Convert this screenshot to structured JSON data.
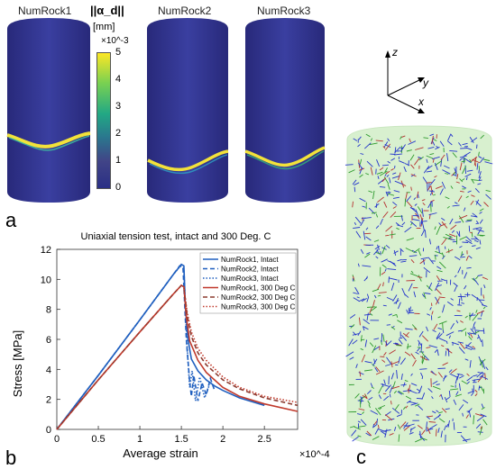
{
  "panel_a": {
    "letter": "a",
    "cylinders": [
      {
        "label": "NumRock1"
      },
      {
        "label": "NumRock2"
      },
      {
        "label": "NumRock3"
      }
    ],
    "colorbar": {
      "title": "||α_d||",
      "unit": "[mm]",
      "multiplier": "×10^-3",
      "ticks": [
        "5",
        "4",
        "3",
        "2",
        "1",
        "0"
      ],
      "colors": [
        "#fde725",
        "#35b779",
        "#21918c",
        "#3b528b",
        "#2a2f86"
      ]
    }
  },
  "panel_b": {
    "letter": "b",
    "multiplier": "×10^-4"
  },
  "panel_c": {
    "letter": "c",
    "axes": {
      "z": "z",
      "y": "y",
      "x": "x"
    },
    "colors": {
      "cylinder": "#d8f0cf",
      "blue": "#2233cc",
      "green": "#2e9a2e",
      "red": "#b53030"
    }
  },
  "chart_data": {
    "type": "line",
    "title": "Uniaxial tension test, intact and 300 Deg. C",
    "xlabel": "Average strain",
    "ylabel": "Stress [MPa]",
    "xlim": [
      0,
      2.9
    ],
    "ylim": [
      0,
      12
    ],
    "xticks": [
      0,
      0.5,
      1,
      1.5,
      2,
      2.5
    ],
    "xtick_labels": [
      "0",
      "0.5",
      "1",
      "1.5",
      "2",
      "2.5"
    ],
    "yticks": [
      0,
      2,
      4,
      6,
      8,
      10,
      12
    ],
    "ytick_labels": [
      "0",
      "2",
      "4",
      "6",
      "8",
      "10",
      "12"
    ],
    "x_multiplier": "×10^-4",
    "legend_position": "top-right",
    "series": [
      {
        "name": "NumRock1, Intact",
        "color": "#1f5fbf",
        "style": "solid",
        "x": [
          0,
          0.5,
          1.0,
          1.4,
          1.5,
          1.53,
          1.55,
          1.58,
          1.62,
          1.7,
          1.8,
          1.9,
          2.0,
          2.2,
          2.5
        ],
        "y": [
          0,
          3.6,
          7.3,
          10.3,
          11.0,
          10.9,
          8.0,
          6.0,
          4.7,
          3.9,
          3.3,
          2.9,
          2.6,
          2.1,
          1.6
        ]
      },
      {
        "name": "NumRock2, Intact",
        "color": "#1f5fbf",
        "style": "dashed",
        "x": [
          0,
          0.5,
          1.0,
          1.4,
          1.48,
          1.52,
          1.56,
          1.6,
          1.62,
          1.65,
          1.7,
          1.75,
          1.8,
          1.85,
          1.9
        ],
        "y": [
          0,
          3.6,
          7.3,
          10.3,
          10.9,
          10.8,
          6.0,
          3.2,
          2.2,
          3.6,
          1.9,
          3.1,
          2.3,
          3.4,
          2.6
        ]
      },
      {
        "name": "NumRock3, Intact",
        "color": "#1f5fbf",
        "style": "dotted",
        "x": [
          0,
          0.5,
          1.0,
          1.4,
          1.49,
          1.53,
          1.57,
          1.6,
          1.63,
          1.67,
          1.72,
          1.78,
          1.84
        ],
        "y": [
          0,
          3.6,
          7.3,
          10.3,
          10.9,
          10.7,
          5.5,
          2.8,
          3.9,
          1.9,
          3.5,
          2.1,
          3.0
        ]
      },
      {
        "name": "NumRock1, 300 Deg C",
        "color": "#c0392b",
        "style": "solid",
        "x": [
          0,
          0.5,
          1.0,
          1.4,
          1.5,
          1.53,
          1.56,
          1.6,
          1.7,
          1.8,
          2.0,
          2.2,
          2.5,
          2.9
        ],
        "y": [
          0,
          3.3,
          6.5,
          9.0,
          9.6,
          9.5,
          7.5,
          5.9,
          4.6,
          3.8,
          2.8,
          2.2,
          1.7,
          1.2
        ]
      },
      {
        "name": "NumRock2, 300 Deg C",
        "color": "#8b3a2f",
        "style": "dashed",
        "x": [
          0,
          0.5,
          1.0,
          1.4,
          1.5,
          1.53,
          1.57,
          1.62,
          1.7,
          1.8,
          2.0,
          2.2,
          2.5,
          2.9
        ],
        "y": [
          0,
          3.3,
          6.5,
          9.0,
          9.6,
          9.5,
          7.6,
          6.2,
          5.1,
          4.3,
          3.3,
          2.7,
          2.1,
          1.6
        ]
      },
      {
        "name": "NumRock3, 300 Deg C",
        "color": "#c0392b",
        "style": "dotted",
        "x": [
          0,
          0.5,
          1.0,
          1.4,
          1.5,
          1.53,
          1.57,
          1.62,
          1.7,
          1.8,
          2.0,
          2.2,
          2.5,
          2.9
        ],
        "y": [
          0,
          3.3,
          6.5,
          9.0,
          9.6,
          9.5,
          7.8,
          6.5,
          5.4,
          4.6,
          3.5,
          2.8,
          2.2,
          1.8
        ]
      }
    ]
  }
}
